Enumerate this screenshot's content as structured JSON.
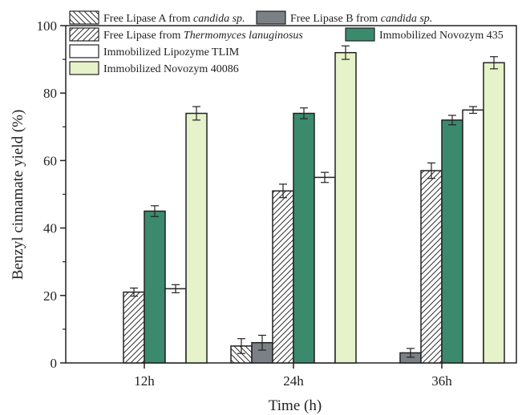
{
  "chart_data": {
    "type": "bar",
    "categories": [
      "12h",
      "24h",
      "36h"
    ],
    "xlabel": "Time (h)",
    "ylabel": "Benzyl cinnamate yield (%)",
    "ylim": [
      0,
      100
    ],
    "yticks": [
      0,
      20,
      40,
      60,
      80,
      100
    ],
    "grid": false,
    "legend_position": "top",
    "series": [
      {
        "key": "free_a",
        "name_prefix": "Free Lipase A from ",
        "name_italic": "candida sp.",
        "name_suffix": "",
        "fill": "#ffffff",
        "pattern": "backslash-hatch",
        "values": [
          0,
          5,
          0
        ],
        "errors": [
          0,
          2.2,
          0
        ]
      },
      {
        "key": "free_b",
        "name_prefix": "Free Lipase B from ",
        "name_italic": "candida sp.",
        "name_suffix": "",
        "fill": "#7b7f86",
        "pattern": "solid",
        "values": [
          0,
          6,
          3
        ],
        "errors": [
          0,
          2.2,
          1.3
        ]
      },
      {
        "key": "free_t",
        "name_prefix": "Free Lipase from ",
        "name_italic": "Thermomyces lanuginosus",
        "name_suffix": "",
        "fill": "#ffffff",
        "pattern": "slash-hatch",
        "values": [
          21,
          51,
          57
        ],
        "errors": [
          1.2,
          2.0,
          2.3
        ]
      },
      {
        "key": "imm_435",
        "name_prefix": "Immobilized Novozym 435",
        "name_italic": "",
        "name_suffix": "",
        "fill": "#3b8a6e",
        "pattern": "solid",
        "values": [
          45,
          74,
          72
        ],
        "errors": [
          1.6,
          1.6,
          1.4
        ]
      },
      {
        "key": "imm_tlim",
        "name_prefix": "Immobilized Lipozyme TLIM",
        "name_italic": "",
        "name_suffix": "",
        "fill": "#ffffff",
        "pattern": "solid",
        "values": [
          22,
          55,
          75
        ],
        "errors": [
          1.2,
          1.5,
          1.0
        ]
      },
      {
        "key": "imm_40086",
        "name_prefix": "Immobilized Novozym 40086",
        "name_italic": "",
        "name_suffix": "",
        "fill": "#e6f2c9",
        "pattern": "solid",
        "values": [
          74,
          92,
          89
        ],
        "errors": [
          2.0,
          2.0,
          1.8
        ]
      }
    ]
  }
}
